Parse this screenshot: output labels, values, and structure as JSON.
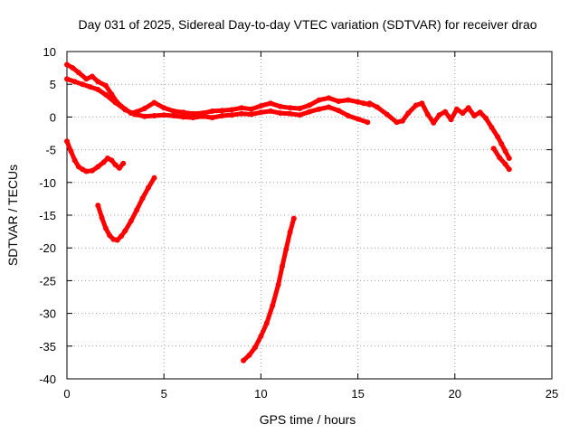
{
  "chart_data": {
    "type": "scatter",
    "title": "Day 031 of 2025, Sidereal Day-to-day VTEC variation (SDTVAR) for receiver drao",
    "xlabel": "GPS time / hours",
    "ylabel": "SDTVAR / TECUs",
    "xlim": [
      0,
      25
    ],
    "ylim": [
      -40,
      10
    ],
    "xticks": [
      0,
      5,
      10,
      15,
      20,
      25
    ],
    "yticks": [
      -40,
      -35,
      -30,
      -25,
      -20,
      -15,
      -10,
      -5,
      0,
      5,
      10
    ],
    "grid": true,
    "marker_color": "#ff0000",
    "series": [
      {
        "name": "trace-main-upper",
        "x": [
          0,
          0.3,
          0.6,
          1.0,
          1.3,
          1.6,
          2.0,
          2.3,
          2.6,
          3.0,
          3.3,
          3.6,
          4.0,
          4.5,
          5.0,
          5.5,
          6.0,
          6.5,
          7.0,
          7.5,
          8.0,
          8.5,
          9.0,
          9.5,
          10.0,
          10.5,
          11.0,
          11.5,
          12.0,
          12.5,
          13.0,
          13.5,
          14.0,
          14.5,
          15.0,
          15.3,
          15.6
        ],
        "y": [
          8,
          7.5,
          6.8,
          5.8,
          6.2,
          5.4,
          4.8,
          3.5,
          2.2,
          1.2,
          0.6,
          0.8,
          1.3,
          2.2,
          1.4,
          0.9,
          0.7,
          0.5,
          0.6,
          0.9,
          1.0,
          1.1,
          1.4,
          1.2,
          1.7,
          2.1,
          1.6,
          1.4,
          1.3,
          1.8,
          2.6,
          2.9,
          2.4,
          2.6,
          2.3,
          2.1,
          1.9
        ]
      },
      {
        "name": "trace-main-lower",
        "x": [
          0,
          0.4,
          0.8,
          1.2,
          1.6,
          2.0,
          2.5,
          3.0,
          3.5,
          4.0,
          4.5,
          5.0,
          5.5,
          6.0,
          6.5,
          7.0,
          7.5,
          8.0,
          8.5,
          9.0,
          9.5,
          10.0,
          10.5,
          11.0,
          11.5,
          12.0,
          12.5,
          13.0,
          13.5,
          14.0,
          14.5,
          15.0,
          15.5
        ],
        "y": [
          5.8,
          5.4,
          5.0,
          4.6,
          4.2,
          3.4,
          2.2,
          1.1,
          0.4,
          0.1,
          0.2,
          0.3,
          0.2,
          0.0,
          -0.1,
          0.1,
          -0.1,
          0.2,
          0.3,
          0.5,
          0.4,
          0.7,
          0.9,
          0.6,
          0.5,
          0.3,
          0.8,
          1.2,
          1.5,
          1.0,
          0.2,
          -0.3,
          -0.8
        ]
      },
      {
        "name": "trace-late",
        "x": [
          15.6,
          16.0,
          16.5,
          17.0,
          17.3,
          17.6,
          18.0,
          18.3,
          18.6,
          18.9,
          19.2,
          19.5,
          19.8,
          20.1,
          20.4,
          20.7,
          21.0,
          21.3,
          21.6,
          21.9,
          22.2,
          22.4,
          22.6,
          22.8
        ],
        "y": [
          2.1,
          1.5,
          0.4,
          -0.8,
          -0.6,
          0.6,
          1.8,
          2.1,
          0.4,
          -0.9,
          0.3,
          0.8,
          -0.4,
          1.2,
          0.6,
          1.4,
          0.2,
          0.7,
          -0.2,
          -1.6,
          -3.0,
          -4.1,
          -5.2,
          -6.3
        ]
      },
      {
        "name": "trace-late-b",
        "x": [
          22.0,
          22.3,
          22.6,
          22.8
        ],
        "y": [
          -4.8,
          -6.2,
          -7.2,
          -8.0
        ]
      },
      {
        "name": "arc-upper",
        "x": [
          0,
          0.2,
          0.4,
          0.6,
          0.8,
          1.0,
          1.3,
          1.6,
          1.9,
          2.1,
          2.3,
          2.5,
          2.7,
          2.9
        ],
        "y": [
          -3.7,
          -5.2,
          -6.6,
          -7.6,
          -8.0,
          -8.3,
          -8.2,
          -7.6,
          -6.9,
          -6.3,
          -6.6,
          -7.3,
          -7.8,
          -7.1
        ]
      },
      {
        "name": "arc-middle",
        "x": [
          1.6,
          1.8,
          2.0,
          2.2,
          2.4,
          2.6,
          2.8,
          3.0,
          3.3,
          3.6,
          3.9,
          4.2,
          4.5
        ],
        "y": [
          -13.5,
          -15.4,
          -17.0,
          -18.1,
          -18.7,
          -18.8,
          -18.2,
          -17.4,
          -15.9,
          -14.2,
          -12.4,
          -10.8,
          -9.3
        ]
      },
      {
        "name": "arc-lower",
        "x": [
          9.1,
          9.4,
          9.7,
          10.0,
          10.3,
          10.6,
          10.9,
          11.1,
          11.3,
          11.5,
          11.7
        ],
        "y": [
          -37.2,
          -36.4,
          -35.2,
          -33.5,
          -31.5,
          -28.8,
          -25.6,
          -22.8,
          -20.2,
          -17.6,
          -15.5
        ]
      }
    ]
  }
}
